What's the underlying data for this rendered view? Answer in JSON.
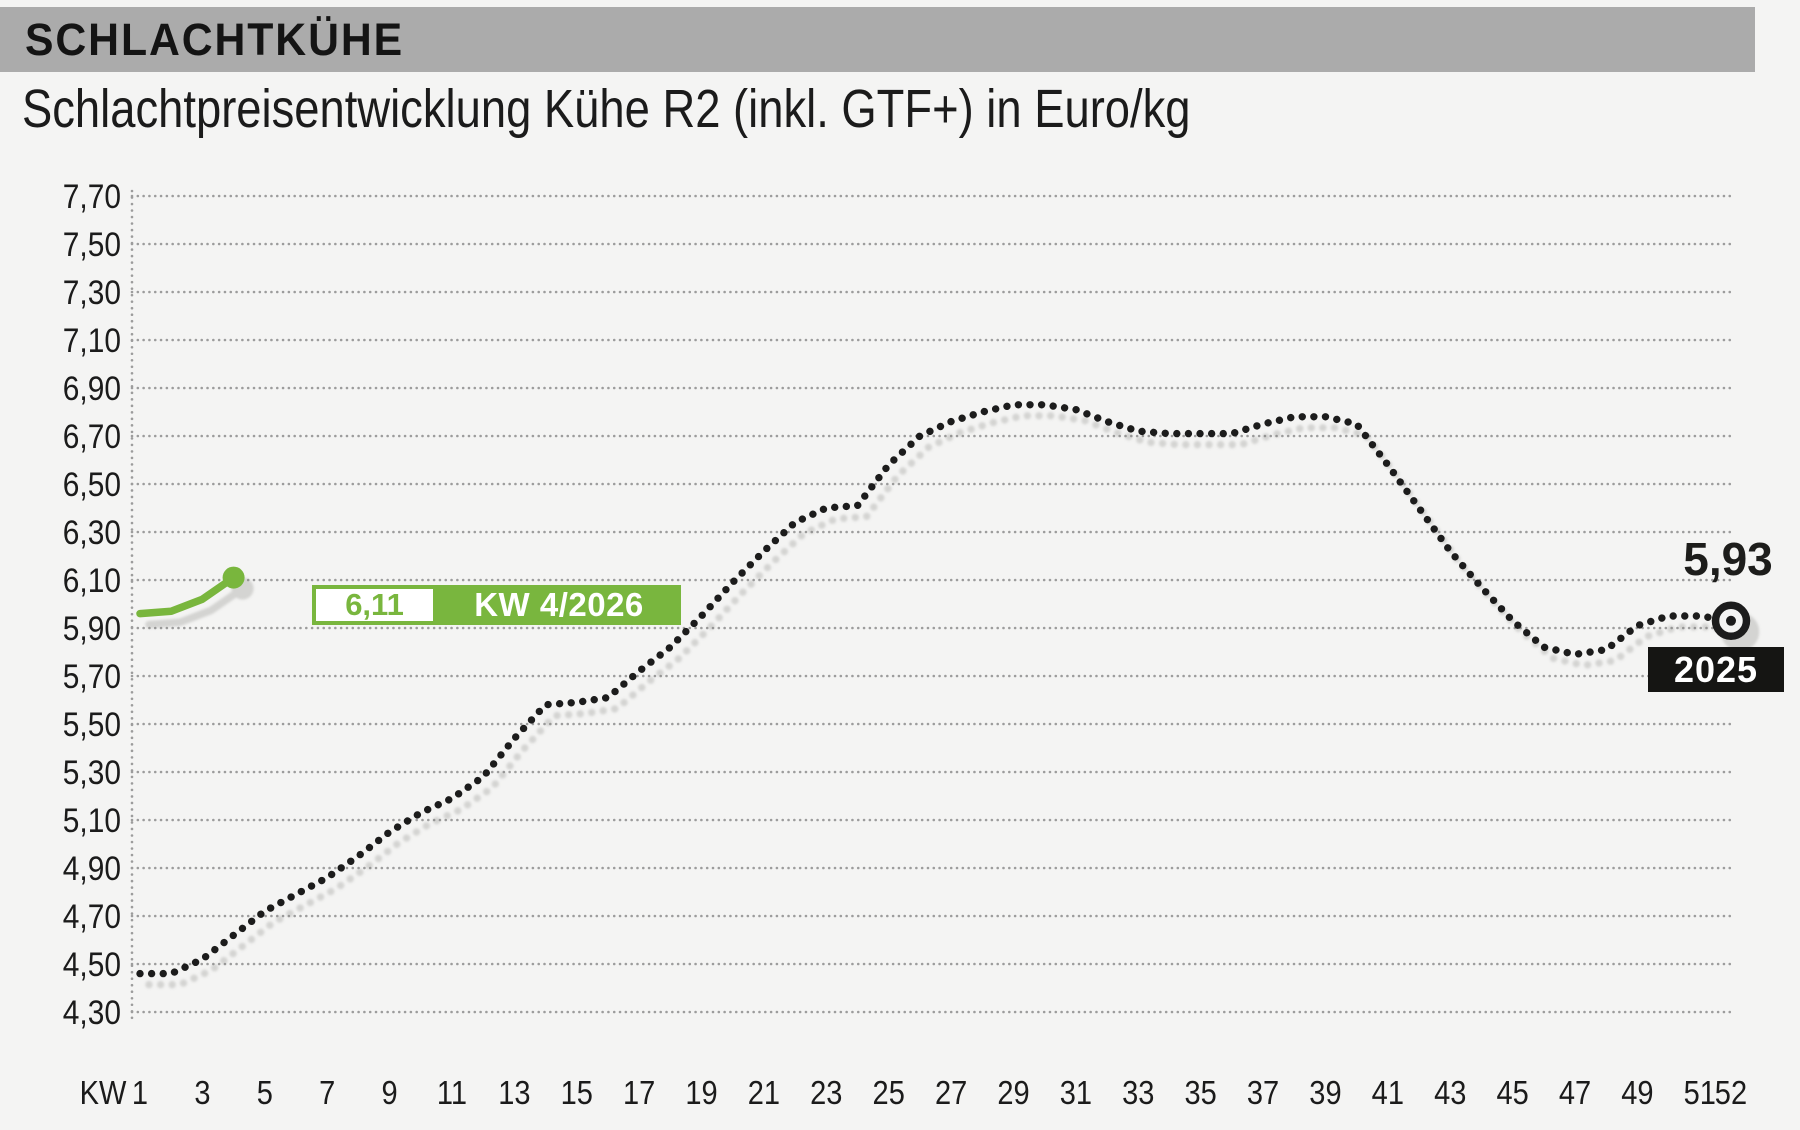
{
  "header": {
    "title": "SCHLACHTKÜHE"
  },
  "subtitle": "Schlachtpreisentwicklung Kühe R2 (inkl. GTF+) in Euro/kg",
  "colors": {
    "accent_green": "#79b63e",
    "series_2025": "#1d1d1b",
    "grid": "#9c9c9c",
    "header_bar": "#ababab",
    "background": "#f4f4f3"
  },
  "chart_data": {
    "type": "line",
    "title": "Schlachtpreisentwicklung Kühe R2 (inkl. GTF+) in Euro/kg",
    "xlabel": "KW",
    "ylabel": "Euro/kg",
    "ylim": [
      4.3,
      7.7
    ],
    "grid": "horizontal-dotted",
    "legend_position": "inline-labels",
    "x_axis_prefix_label": "KW",
    "x_tick_weeks": [
      1,
      3,
      5,
      7,
      9,
      11,
      13,
      15,
      17,
      19,
      21,
      23,
      25,
      27,
      29,
      31,
      33,
      35,
      37,
      39,
      41,
      43,
      45,
      47,
      49,
      51,
      52
    ],
    "x_tick_labels": [
      "1",
      "3",
      "5",
      "7",
      "9",
      "11",
      "13",
      "15",
      "17",
      "19",
      "21",
      "23",
      "25",
      "27",
      "29",
      "31",
      "33",
      "35",
      "37",
      "39",
      "41",
      "43",
      "45",
      "47",
      "49",
      "51",
      "52"
    ],
    "y_tick_values": [
      7.7,
      7.5,
      7.3,
      7.1,
      6.9,
      6.7,
      6.5,
      6.3,
      6.1,
      5.9,
      5.7,
      5.5,
      5.3,
      5.1,
      4.9,
      4.7,
      4.5,
      4.3
    ],
    "y_tick_labels": [
      "7,70",
      "7,50",
      "7,30",
      "7,10",
      "6,90",
      "6,70",
      "6,50",
      "6,30",
      "6,10",
      "5,90",
      "5,70",
      "5,50",
      "5,30",
      "5,10",
      "4,90",
      "4,70",
      "4,50",
      "4,30"
    ],
    "series": [
      {
        "id": "2025",
        "name": "2025",
        "style": "dotted",
        "color": "#1d1d1b",
        "marker_end": "ring",
        "end_value_label": "5,93",
        "start_week": 1,
        "values": [
          4.46,
          4.46,
          4.52,
          4.62,
          4.72,
          4.79,
          4.86,
          4.95,
          5.05,
          5.13,
          5.19,
          5.28,
          5.44,
          5.58,
          5.59,
          5.61,
          5.72,
          5.82,
          5.95,
          6.09,
          6.22,
          6.34,
          6.4,
          6.41,
          6.58,
          6.7,
          6.76,
          6.8,
          6.83,
          6.83,
          6.81,
          6.76,
          6.72,
          6.71,
          6.71,
          6.71,
          6.75,
          6.78,
          6.78,
          6.75,
          6.58,
          6.4,
          6.22,
          6.07,
          5.93,
          5.82,
          5.79,
          5.81,
          5.91,
          5.95,
          5.95,
          5.93
        ]
      },
      {
        "id": "2026",
        "name": "KW 4/2026",
        "style": "solid",
        "color": "#79b63e",
        "marker_end": "dot",
        "callout": {
          "value_label": "6,11",
          "week_label": "KW 4/2026"
        },
        "start_week": 1,
        "values": [
          5.96,
          5.97,
          6.02,
          6.11
        ]
      }
    ]
  }
}
